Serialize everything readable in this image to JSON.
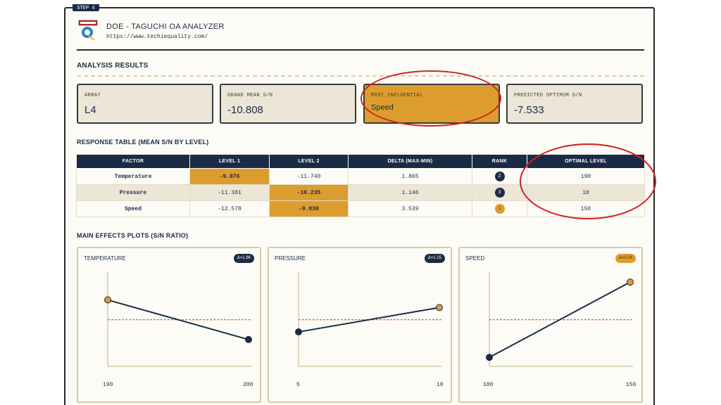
{
  "step_tab": "STEP 4",
  "app": {
    "title": "DOE - TAGUCHI OA ANALYZER",
    "url": "https://www.techiequality.com/"
  },
  "analysis": {
    "title": "ANALYSIS RESULTS",
    "cards": [
      {
        "label": "ARRAY",
        "value": "L4"
      },
      {
        "label": "GRAND MEAN S/N",
        "value": "-10.808"
      },
      {
        "label": "MOST INFLUENTIAL",
        "value": "Speed"
      },
      {
        "label": "PREDICTED OPTIMUM S/N",
        "value": "-7.533"
      }
    ]
  },
  "response_table": {
    "title": "RESPONSE TABLE (MEAN S/N BY LEVEL)",
    "headers": [
      "FACTOR",
      "LEVEL 1",
      "LEVEL 2",
      "DELTA (MAX-MIN)",
      "RANK",
      "OPTIMAL LEVEL"
    ],
    "rows": [
      {
        "factor": "Temperature",
        "level1": "-9.876",
        "level2": "-11.740",
        "delta": "1.865",
        "rank": "2",
        "optimal": "190"
      },
      {
        "factor": "Pressure",
        "level1": "-11.381",
        "level2": "-10.235",
        "delta": "1.146",
        "rank": "3",
        "optimal": "10"
      },
      {
        "factor": "Speed",
        "level1": "-12.578",
        "level2": "-9.038",
        "delta": "3.539",
        "rank": "1",
        "optimal": "150"
      }
    ]
  },
  "effects": {
    "title": "MAIN EFFECTS PLOTS (S/N RATIO)",
    "grand_mean": -10.808,
    "y_range": [
      -13.0,
      -8.7
    ],
    "plots": [
      {
        "title": "TEMPERATURE",
        "delta_label": "Δ=1.86",
        "levels": [
          "190",
          "200"
        ],
        "values": [
          -9.876,
          -11.74
        ],
        "optimal_index": 0,
        "top": false
      },
      {
        "title": "PRESSURE",
        "delta_label": "Δ=1.15",
        "levels": [
          "5",
          "10"
        ],
        "values": [
          -11.381,
          -10.235
        ],
        "optimal_index": 1,
        "top": false
      },
      {
        "title": "SPEED",
        "delta_label": "Δ=3.54",
        "levels": [
          "100",
          "150"
        ],
        "values": [
          -12.578,
          -9.038
        ],
        "optimal_index": 1,
        "top": true
      }
    ]
  },
  "colors": {
    "navy": "#1c2b45",
    "accent": "#dc9d2e",
    "annotation": "#d22020",
    "mean_line": "#c0392b"
  },
  "chart_data": [
    {
      "type": "line",
      "title": "TEMPERATURE",
      "x": [
        "190",
        "200"
      ],
      "values": [
        -9.876,
        -11.74
      ],
      "grand_mean": -10.808
    },
    {
      "type": "line",
      "title": "PRESSURE",
      "x": [
        "5",
        "10"
      ],
      "values": [
        -11.381,
        -10.235
      ],
      "grand_mean": -10.808
    },
    {
      "type": "line",
      "title": "SPEED",
      "x": [
        "100",
        "150"
      ],
      "values": [
        -12.578,
        -9.038
      ],
      "grand_mean": -10.808
    }
  ]
}
